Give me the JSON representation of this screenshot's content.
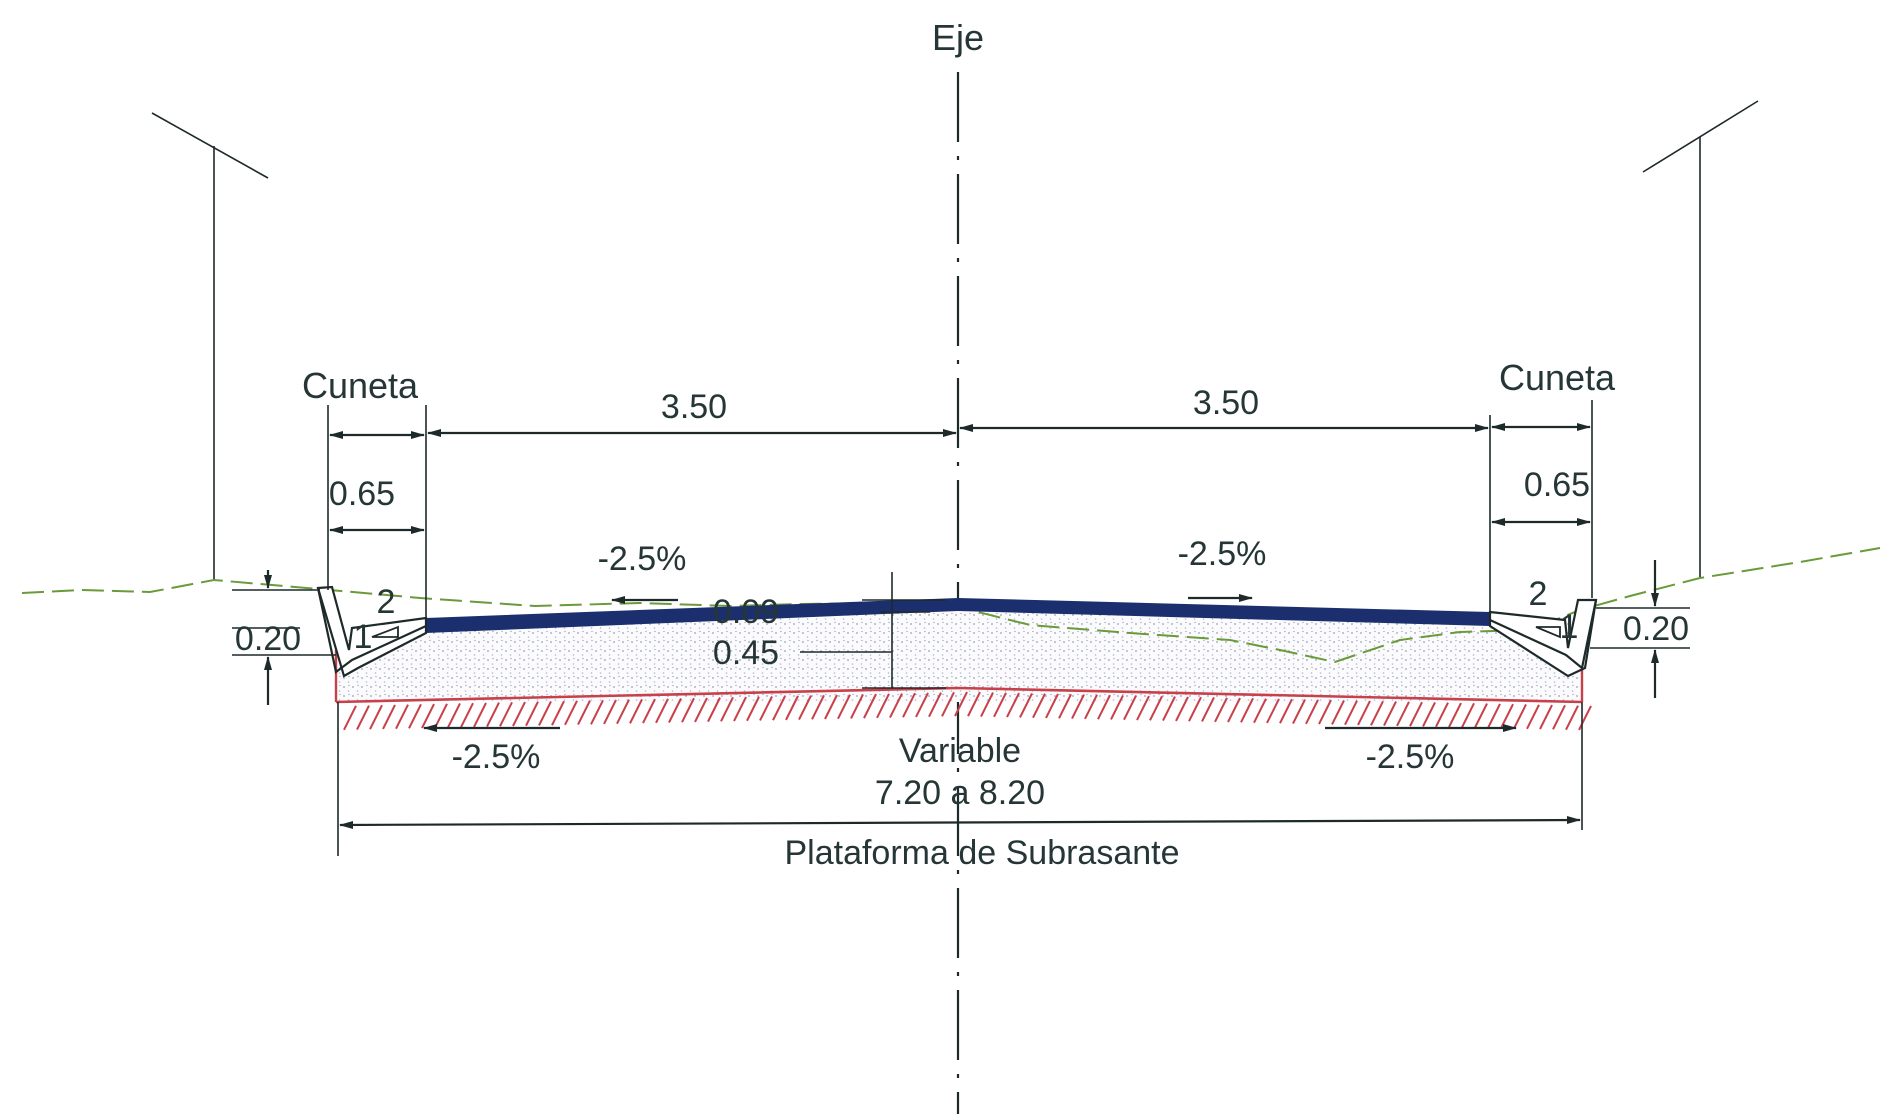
{
  "labels": {
    "axis": "Eje",
    "ditch_left": "Cuneta",
    "ditch_right": "Cuneta",
    "lane_left_width": "3.50",
    "lane_right_width": "3.50",
    "ditch_left_width": "0.65",
    "ditch_right_width": "0.65",
    "slope_top_left": "-2.5%",
    "slope_top_right": "-2.5%",
    "slope_bottom_left": "-2.5%",
    "slope_bottom_right": "-2.5%",
    "pavement_thickness": "0.09",
    "base_thickness": "0.45",
    "ditch_left_depth": "0.20",
    "ditch_right_depth": "0.20",
    "ratio_left_h": "2",
    "ratio_left_v": "1",
    "ratio_right_h": "2",
    "ratio_right_v": "1",
    "platform_variable": "Variable",
    "platform_range": "7.20 a 8.20",
    "platform_name": "Plataforma de Subrasante"
  },
  "colors": {
    "pavement": "#1b2f6e",
    "ground_line": "#6a9a3a",
    "subgrade": "#c8404a",
    "fill_dots": "#9aa0b8",
    "ink": "#1e2a2a"
  }
}
